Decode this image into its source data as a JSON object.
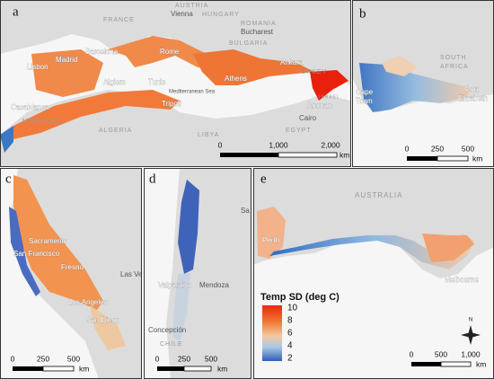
{
  "panels": [
    {
      "label": "a",
      "places": [
        "FRANCE",
        "AUSTRIA",
        "Vienna",
        "HUNGARY",
        "ROMANIA",
        "Bucharest",
        "BULGARIA",
        "Rome",
        "Ankara",
        "TURKEY",
        "Athens",
        "Madrid",
        "Barcelona",
        "Lisbon",
        "Casablanca",
        "MOROCCO",
        "Algiers",
        "Tunis",
        "Tripoli",
        "Mediterranean Sea",
        "ALGERIA",
        "LIBYA",
        "EGYPT",
        "Cairo",
        "Amman",
        "ISRAEL"
      ],
      "scale": {
        "ticks": [
          "0",
          "1,000",
          "2,000"
        ],
        "unit": "km"
      }
    },
    {
      "label": "b",
      "places": [
        "SOUTH",
        "AFRICA",
        "Cape",
        "Town",
        "Port",
        "Elizabeth"
      ],
      "scale": {
        "ticks": [
          "0",
          "250",
          "500"
        ],
        "unit": "km"
      }
    },
    {
      "label": "c",
      "places": [
        "Sacramento",
        "San Francisco",
        "Fresno",
        "Las Ve",
        "Los Angeles",
        "San Diego"
      ],
      "scale": {
        "ticks": [
          "0",
          "250",
          "500"
        ],
        "unit": "km"
      }
    },
    {
      "label": "d",
      "places": [
        "Valparaíso",
        "Mendoza",
        "Concepción",
        "CHILE",
        "Sa"
      ],
      "scale": {
        "ticks": [
          "0",
          "250",
          "500"
        ],
        "unit": "km"
      }
    },
    {
      "label": "e",
      "places": [
        "AUSTRALIA",
        "Perth",
        "Melbourne",
        "N"
      ],
      "scale": {
        "ticks": [
          "0",
          "500",
          "1,000"
        ],
        "unit": "km"
      }
    }
  ],
  "legend": {
    "title": "Temp SD (deg C)",
    "ticks": [
      10,
      8,
      6,
      4,
      2
    ]
  }
}
